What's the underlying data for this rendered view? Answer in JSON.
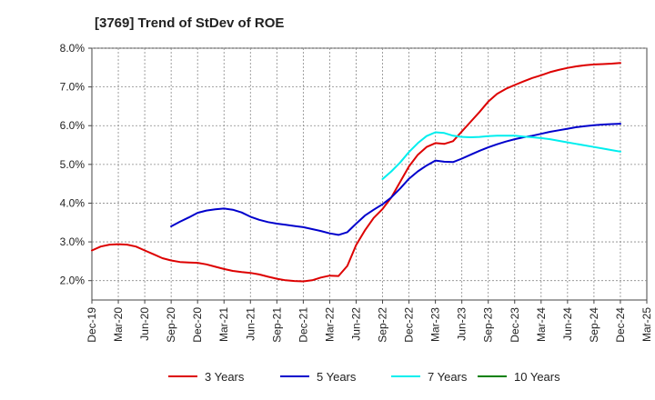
{
  "chart_data": {
    "type": "line",
    "title": "[3769]  Trend of StDev of ROE",
    "xlabel": "",
    "ylabel": "",
    "ylim": [
      1.5,
      8.0
    ],
    "y_ticks": [
      "2.0%",
      "3.0%",
      "4.0%",
      "5.0%",
      "6.0%",
      "7.0%",
      "8.0%"
    ],
    "y_tick_values": [
      2.0,
      3.0,
      4.0,
      5.0,
      6.0,
      7.0,
      8.0
    ],
    "x_tick_labels": [
      "Dec-19",
      "Mar-20",
      "Jun-20",
      "Sep-20",
      "Dec-20",
      "Mar-21",
      "Jun-21",
      "Sep-21",
      "Dec-21",
      "Mar-22",
      "Jun-22",
      "Sep-22",
      "Dec-22",
      "Mar-23",
      "Jun-23",
      "Sep-23",
      "Dec-23",
      "Mar-24",
      "Jun-24",
      "Sep-24",
      "Dec-24",
      "Mar-25"
    ],
    "grid": true,
    "legend_position": "bottom",
    "series": [
      {
        "name": "3 Years",
        "color": "#dd0000",
        "points": [
          [
            "Dec-19",
            2.78
          ],
          [
            "Jan-20",
            2.88
          ],
          [
            "Feb-20",
            2.93
          ],
          [
            "Mar-20",
            2.94
          ],
          [
            "Apr-20",
            2.93
          ],
          [
            "May-20",
            2.88
          ],
          [
            "Jun-20",
            2.78
          ],
          [
            "Jul-20",
            2.68
          ],
          [
            "Aug-20",
            2.58
          ],
          [
            "Sep-20",
            2.52
          ],
          [
            "Oct-20",
            2.48
          ],
          [
            "Nov-20",
            2.47
          ],
          [
            "Dec-20",
            2.46
          ],
          [
            "Jan-21",
            2.42
          ],
          [
            "Feb-21",
            2.36
          ],
          [
            "Mar-21",
            2.3
          ],
          [
            "Apr-21",
            2.25
          ],
          [
            "May-21",
            2.22
          ],
          [
            "Jun-21",
            2.2
          ],
          [
            "Jul-21",
            2.16
          ],
          [
            "Aug-21",
            2.1
          ],
          [
            "Sep-21",
            2.05
          ],
          [
            "Oct-21",
            2.01
          ],
          [
            "Nov-21",
            1.99
          ],
          [
            "Dec-21",
            1.98
          ],
          [
            "Jan-22",
            2.01
          ],
          [
            "Feb-22",
            2.08
          ],
          [
            "Mar-22",
            2.13
          ],
          [
            "Apr-22",
            2.12
          ],
          [
            "May-22",
            2.38
          ],
          [
            "Jun-22",
            2.92
          ],
          [
            "Jul-22",
            3.3
          ],
          [
            "Aug-22",
            3.62
          ],
          [
            "Sep-22",
            3.85
          ],
          [
            "Oct-22",
            4.15
          ],
          [
            "Nov-22",
            4.55
          ],
          [
            "Dec-22",
            4.95
          ],
          [
            "Jan-23",
            5.25
          ],
          [
            "Feb-23",
            5.45
          ],
          [
            "Mar-23",
            5.55
          ],
          [
            "Apr-23",
            5.53
          ],
          [
            "May-23",
            5.6
          ],
          [
            "Jun-23",
            5.85
          ],
          [
            "Jul-23",
            6.1
          ],
          [
            "Aug-23",
            6.35
          ],
          [
            "Sep-23",
            6.62
          ],
          [
            "Oct-23",
            6.82
          ],
          [
            "Nov-23",
            6.95
          ],
          [
            "Dec-23",
            7.05
          ],
          [
            "Jan-24",
            7.14
          ],
          [
            "Feb-24",
            7.23
          ],
          [
            "Mar-24",
            7.3
          ],
          [
            "Apr-24",
            7.38
          ],
          [
            "May-24",
            7.44
          ],
          [
            "Jun-24",
            7.49
          ],
          [
            "Jul-24",
            7.53
          ],
          [
            "Aug-24",
            7.56
          ],
          [
            "Sep-24",
            7.58
          ],
          [
            "Oct-24",
            7.59
          ],
          [
            "Nov-24",
            7.6
          ],
          [
            "Dec-24",
            7.62
          ]
        ]
      },
      {
        "name": "5 Years",
        "color": "#0000cc",
        "points": [
          [
            "Sep-20",
            3.4
          ],
          [
            "Oct-20",
            3.52
          ],
          [
            "Nov-20",
            3.63
          ],
          [
            "Dec-20",
            3.75
          ],
          [
            "Jan-21",
            3.81
          ],
          [
            "Feb-21",
            3.84
          ],
          [
            "Mar-21",
            3.86
          ],
          [
            "Apr-21",
            3.83
          ],
          [
            "May-21",
            3.76
          ],
          [
            "Jun-21",
            3.65
          ],
          [
            "Jul-21",
            3.57
          ],
          [
            "Aug-21",
            3.51
          ],
          [
            "Sep-21",
            3.47
          ],
          [
            "Oct-21",
            3.44
          ],
          [
            "Nov-21",
            3.41
          ],
          [
            "Dec-21",
            3.38
          ],
          [
            "Jan-22",
            3.33
          ],
          [
            "Feb-22",
            3.28
          ],
          [
            "Mar-22",
            3.22
          ],
          [
            "Apr-22",
            3.18
          ],
          [
            "May-22",
            3.25
          ],
          [
            "Jun-22",
            3.47
          ],
          [
            "Jul-22",
            3.68
          ],
          [
            "Aug-22",
            3.83
          ],
          [
            "Sep-22",
            3.97
          ],
          [
            "Oct-22",
            4.15
          ],
          [
            "Nov-22",
            4.38
          ],
          [
            "Dec-22",
            4.63
          ],
          [
            "Jan-23",
            4.82
          ],
          [
            "Feb-23",
            4.97
          ],
          [
            "Mar-23",
            5.1
          ],
          [
            "Apr-23",
            5.07
          ],
          [
            "May-23",
            5.06
          ],
          [
            "Jun-23",
            5.15
          ],
          [
            "Jul-23",
            5.25
          ],
          [
            "Aug-23",
            5.35
          ],
          [
            "Sep-23",
            5.44
          ],
          [
            "Oct-23",
            5.52
          ],
          [
            "Nov-23",
            5.59
          ],
          [
            "Dec-23",
            5.65
          ],
          [
            "Jan-24",
            5.7
          ],
          [
            "Feb-24",
            5.74
          ],
          [
            "Mar-24",
            5.79
          ],
          [
            "Apr-24",
            5.84
          ],
          [
            "May-24",
            5.88
          ],
          [
            "Jun-24",
            5.92
          ],
          [
            "Jul-24",
            5.96
          ],
          [
            "Aug-24",
            5.99
          ],
          [
            "Sep-24",
            6.01
          ],
          [
            "Oct-24",
            6.03
          ],
          [
            "Nov-24",
            6.04
          ],
          [
            "Dec-24",
            6.05
          ]
        ]
      },
      {
        "name": "7 Years",
        "color": "#00eeee",
        "points": [
          [
            "Sep-22",
            4.62
          ],
          [
            "Oct-22",
            4.82
          ],
          [
            "Nov-22",
            5.05
          ],
          [
            "Dec-22",
            5.32
          ],
          [
            "Jan-23",
            5.55
          ],
          [
            "Feb-23",
            5.73
          ],
          [
            "Mar-23",
            5.83
          ],
          [
            "Apr-23",
            5.81
          ],
          [
            "May-23",
            5.74
          ],
          [
            "Jun-23",
            5.71
          ],
          [
            "Jul-23",
            5.7
          ],
          [
            "Aug-23",
            5.71
          ],
          [
            "Sep-23",
            5.73
          ],
          [
            "Oct-23",
            5.74
          ],
          [
            "Nov-23",
            5.74
          ],
          [
            "Dec-23",
            5.74
          ],
          [
            "Jan-24",
            5.72
          ],
          [
            "Feb-24",
            5.7
          ],
          [
            "Mar-24",
            5.68
          ],
          [
            "Apr-24",
            5.65
          ],
          [
            "May-24",
            5.61
          ],
          [
            "Jun-24",
            5.57
          ],
          [
            "Jul-24",
            5.53
          ],
          [
            "Aug-24",
            5.49
          ],
          [
            "Sep-24",
            5.45
          ],
          [
            "Oct-24",
            5.41
          ],
          [
            "Nov-24",
            5.37
          ],
          [
            "Dec-24",
            5.33
          ]
        ]
      },
      {
        "name": "10 Years",
        "color": "#008000",
        "points": []
      }
    ]
  }
}
